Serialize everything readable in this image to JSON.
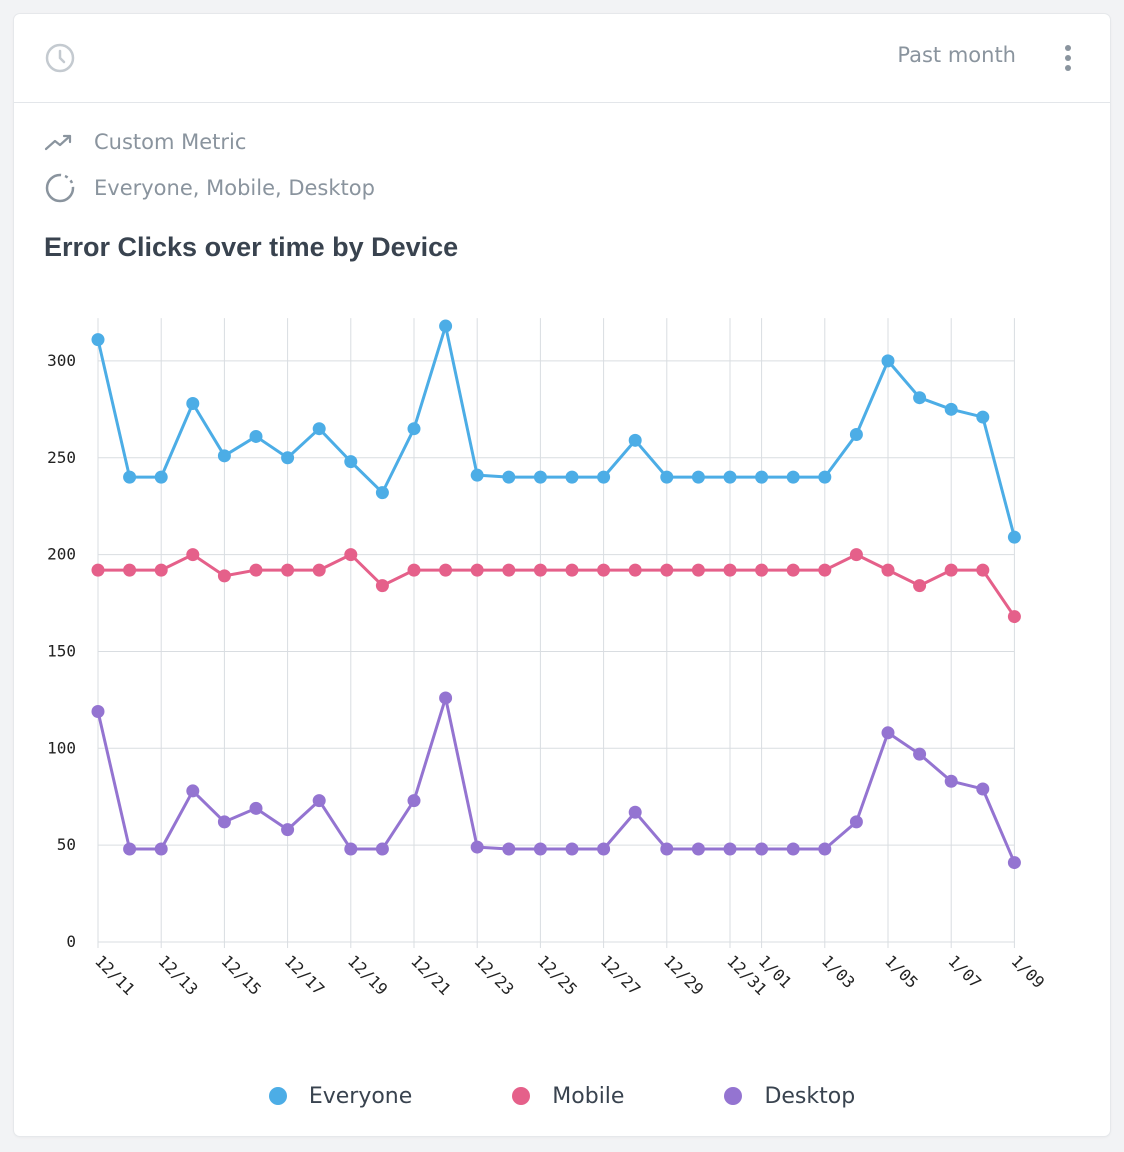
{
  "header": {
    "range_label": "Past month",
    "clock_icon": "clock-icon",
    "menu_icon": "more-vertical-icon"
  },
  "meta": {
    "metric_label": "Custom Metric",
    "metric_icon": "trending-up-icon",
    "segments_label": "Everyone, Mobile, Desktop",
    "segments_icon": "segment-circle-icon"
  },
  "colors": {
    "everyone": "#4cade6",
    "mobile": "#e5608a",
    "desktop": "#9474d1",
    "grid": "#d9dde1"
  },
  "chart_data": {
    "type": "line",
    "title": "Error Clicks over time by Device",
    "xlabel": "",
    "ylabel": "",
    "ylim": [
      0,
      320
    ],
    "yticks": [
      0,
      50,
      100,
      150,
      200,
      250,
      300
    ],
    "grid": true,
    "legend_position": "bottom",
    "x": [
      "12/11",
      "12/12",
      "12/13",
      "12/14",
      "12/15",
      "12/16",
      "12/17",
      "12/18",
      "12/19",
      "12/20",
      "12/21",
      "12/22",
      "12/23",
      "12/24",
      "12/25",
      "12/26",
      "12/27",
      "12/28",
      "12/29",
      "12/30",
      "12/31",
      "1/01",
      "1/02",
      "1/03",
      "1/04",
      "1/05",
      "1/06",
      "1/07",
      "1/08",
      "1/09"
    ],
    "x_tick_labels": [
      "12/11",
      "12/13",
      "12/15",
      "12/17",
      "12/19",
      "12/21",
      "12/23",
      "12/25",
      "12/27",
      "12/29",
      "12/31",
      "1/01",
      "1/03",
      "1/05",
      "1/07",
      "1/09"
    ],
    "series": [
      {
        "name": "Everyone",
        "color": "#4cade6",
        "values": [
          311,
          240,
          240,
          278,
          251,
          261,
          250,
          265,
          248,
          232,
          265,
          318,
          241,
          240,
          240,
          240,
          240,
          259,
          240,
          240,
          240,
          240,
          240,
          240,
          262,
          300,
          281,
          275,
          271,
          209
        ]
      },
      {
        "name": "Mobile",
        "color": "#e5608a",
        "values": [
          192,
          192,
          192,
          200,
          189,
          192,
          192,
          192,
          200,
          184,
          192,
          192,
          192,
          192,
          192,
          192,
          192,
          192,
          192,
          192,
          192,
          192,
          192,
          192,
          200,
          192,
          184,
          192,
          192,
          168
        ]
      },
      {
        "name": "Desktop",
        "color": "#9474d1",
        "values": [
          119,
          48,
          48,
          78,
          62,
          69,
          58,
          73,
          48,
          48,
          73,
          126,
          49,
          48,
          48,
          48,
          48,
          67,
          48,
          48,
          48,
          48,
          48,
          48,
          62,
          108,
          97,
          83,
          79,
          41
        ]
      }
    ]
  }
}
